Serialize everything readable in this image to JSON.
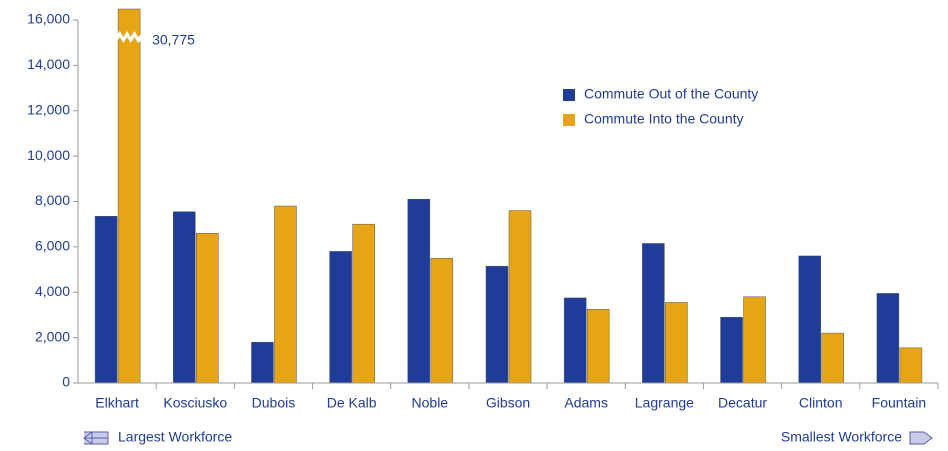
{
  "chart_data": {
    "type": "bar",
    "categories": [
      "Elkhart",
      "Kosciusko",
      "Dubois",
      "De Kalb",
      "Noble",
      "Gibson",
      "Adams",
      "Lagrange",
      "Decatur",
      "Clinton",
      "Fountain"
    ],
    "series": [
      {
        "name": "Commute Out of the County",
        "color": "#1f3c98",
        "values": [
          7350,
          7550,
          1800,
          5800,
          8100,
          5150,
          3750,
          6150,
          2900,
          5600,
          3950
        ]
      },
      {
        "name": "Commute Into the County",
        "color": "#e6a514",
        "values": [
          30775,
          6600,
          7800,
          7000,
          5500,
          7600,
          3250,
          3550,
          3800,
          2200,
          1550
        ],
        "value_labels": [
          "30,775",
          null,
          null,
          null,
          null,
          null,
          null,
          null,
          null,
          null,
          null
        ]
      }
    ],
    "ylim": [
      0,
      16000
    ],
    "yticks": [
      0,
      {
        "value": 2000,
        "label": "2,000"
      },
      {
        "value": 4000,
        "label": "4,000"
      },
      {
        "value": 6000,
        "label": "6,000"
      },
      {
        "value": 8000,
        "label": "8,000"
      },
      {
        "value": 10000,
        "label": "10,000"
      },
      {
        "value": 12000,
        "label": "12,000"
      },
      {
        "value": 14000,
        "label": "14,000"
      },
      {
        "value": 16000,
        "label": "16,000"
      }
    ],
    "annotations": [
      "Largest Workforce",
      "Smallest Workforce"
    ]
  }
}
